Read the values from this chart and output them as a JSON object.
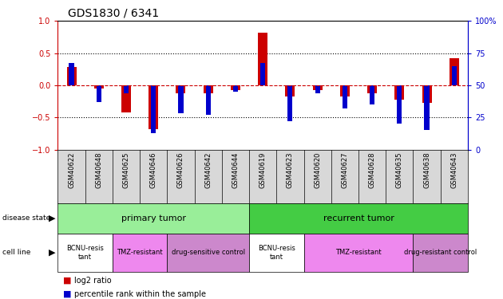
{
  "title": "GDS1830 / 6341",
  "samples": [
    "GSM40622",
    "GSM40648",
    "GSM40625",
    "GSM40646",
    "GSM40626",
    "GSM40642",
    "GSM40644",
    "GSM40619",
    "GSM40623",
    "GSM40620",
    "GSM40627",
    "GSM40628",
    "GSM40635",
    "GSM40638",
    "GSM40643"
  ],
  "log2_ratio": [
    0.28,
    -0.05,
    -0.42,
    -0.68,
    -0.12,
    -0.12,
    -0.07,
    0.82,
    -0.18,
    -0.07,
    -0.18,
    -0.13,
    -0.22,
    -0.28,
    0.42
  ],
  "percentile_rank_raw": [
    67,
    37,
    44,
    13,
    28,
    27,
    45,
    67,
    22,
    44,
    32,
    35,
    20,
    15,
    65
  ],
  "bar_color_red": "#cc0000",
  "bar_color_blue": "#0000cc",
  "zero_line_color": "#cc0000",
  "dotted_line_color": "#000000",
  "ylim_left": [
    -1,
    1
  ],
  "ylim_right": [
    0,
    100
  ],
  "yticks_left": [
    -1,
    -0.5,
    0,
    0.5,
    1
  ],
  "yticks_right": [
    0,
    25,
    50,
    75,
    100
  ],
  "disease_state_color_primary": "#99ee99",
  "disease_state_color_recurrent": "#44cc44",
  "cell_colors": [
    "#ffffff",
    "#ee88ee",
    "#cc88cc",
    "#ffffff",
    "#ee88ee",
    "#cc88cc"
  ],
  "cell_labels": [
    "BCNU-resis\ntant",
    "TMZ-resistant",
    "drug-sensitive control",
    "BCNU-resis\ntant",
    "TMZ-resistant",
    "drug-resistant control"
  ],
  "cell_spans_start": [
    0,
    2,
    4,
    7,
    9,
    13
  ],
  "cell_spans_end": [
    1,
    3,
    6,
    8,
    12,
    14
  ],
  "bg_color": "#ffffff",
  "red_bar_width": 0.35,
  "blue_bar_width": 0.18
}
